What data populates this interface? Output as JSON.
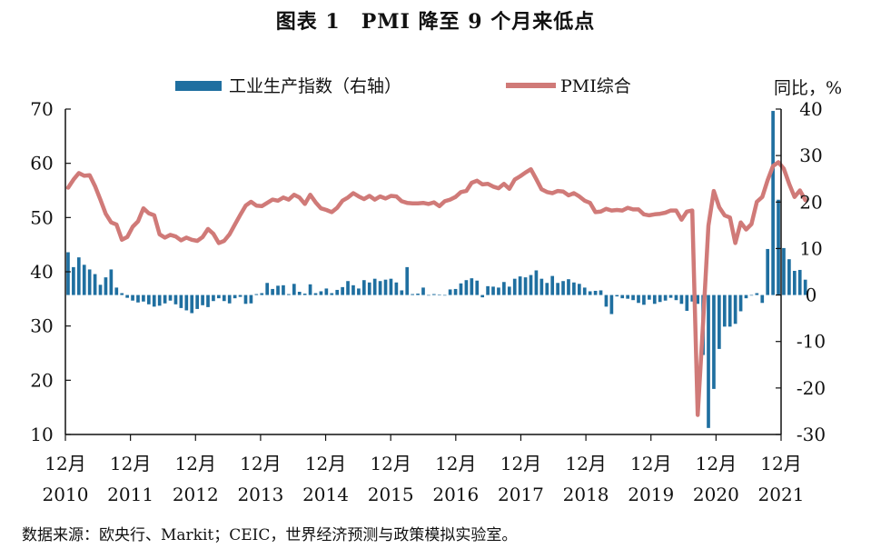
{
  "title": "图表 1　PMI 降至 9 个月来低点",
  "source": "数据来源：欧央行、Markit；CEIC，世界经济预测与政策模拟实验室。",
  "colors": {
    "bar": "#1f6fa0",
    "line": "#d07a78",
    "axis": "#111111"
  },
  "chart_data": {
    "type": "bar+line",
    "title": "图表 1　PMI 降至 9 个月来低点",
    "right_axis_unit": "同比，%",
    "left_axis": {
      "ylim": [
        10,
        70
      ],
      "ticks": [
        "70",
        "60",
        "50",
        "40",
        "30",
        "20",
        "10"
      ]
    },
    "right_axis": {
      "ylim": [
        -30,
        40
      ],
      "ticks": [
        "40",
        "30",
        "20",
        "10",
        "0",
        "-10",
        "-20",
        "-30"
      ]
    },
    "x_tick_labels": [
      {
        "month": "12月",
        "year": "2010"
      },
      {
        "month": "12月",
        "year": "2011"
      },
      {
        "month": "12月",
        "year": "2012"
      },
      {
        "month": "12月",
        "year": "2013"
      },
      {
        "month": "12月",
        "year": "2014"
      },
      {
        "month": "12月",
        "year": "2015"
      },
      {
        "month": "12月",
        "year": "2016"
      },
      {
        "month": "12月",
        "year": "2017"
      },
      {
        "month": "12月",
        "year": "2018"
      },
      {
        "month": "12月",
        "year": "2019"
      },
      {
        "month": "12月",
        "year": "2020"
      },
      {
        "month": "12月",
        "year": "2021"
      }
    ],
    "x_start": "2010-12",
    "grid": false,
    "legend_position": "top",
    "series": [
      {
        "name": "工业生产指数（右轴）",
        "type": "bar",
        "axis": "right",
        "values": [
          9.2,
          6.0,
          8.1,
          6.5,
          5.5,
          4.5,
          2.2,
          3.8,
          5.5,
          1.6,
          0.4,
          -0.6,
          -1.2,
          -1.6,
          -1.4,
          -2.0,
          -2.5,
          -2.3,
          -1.8,
          -1.2,
          -2.0,
          -2.8,
          -3.3,
          -3.9,
          -3.0,
          -2.2,
          -2.6,
          -1.3,
          -0.7,
          -1.3,
          -1.8,
          -0.7,
          -0.4,
          -1.9,
          -1.8,
          0.2,
          0.4,
          2.6,
          1.3,
          2.0,
          2.1,
          0.2,
          2.4,
          0.7,
          0.3,
          2.3,
          0.4,
          0.8,
          1.4,
          0.4,
          1.1,
          1.7,
          3.0,
          2.1,
          1.4,
          3.2,
          2.7,
          3.5,
          3.0,
          3.3,
          3.5,
          2.7,
          1.0,
          6.0,
          0.2,
          0.3,
          1.6,
          0.0,
          0.2,
          0.1,
          -0.1,
          1.2,
          1.3,
          2.5,
          3.2,
          3.6,
          3.1,
          -0.5,
          1.9,
          1.8,
          1.6,
          2.8,
          1.8,
          3.5,
          4.0,
          3.8,
          4.3,
          5.3,
          3.5,
          2.6,
          4.1,
          2.6,
          3.0,
          3.4,
          2.7,
          2.4,
          1.6,
          0.8,
          0.9,
          1.0,
          -2.5,
          -4.1,
          -0.3,
          -0.7,
          -0.8,
          -1.1,
          -1.7,
          -2.1,
          -1.0,
          -1.9,
          -1.5,
          -1.2,
          -0.6,
          -1.1,
          -1.9,
          -3.4,
          -1.4,
          -1.9,
          -12.9,
          -28.6,
          -20.2,
          -11.6,
          -6.8,
          -6.8,
          -6.2,
          -3.5,
          -0.7,
          0.0,
          0.4,
          -1.7,
          9.9,
          39.6,
          20.5,
          10.1,
          7.7,
          5.2,
          5.4,
          3.3
        ],
        "note": "monthly y/y %, read approximately from bar heights"
      },
      {
        "name": "PMI综合",
        "type": "line",
        "axis": "left",
        "values": [
          55.5,
          57.0,
          58.2,
          57.7,
          57.8,
          55.8,
          53.3,
          50.7,
          49.1,
          48.7,
          45.9,
          46.4,
          48.3,
          49.3,
          51.7,
          50.8,
          50.4,
          46.9,
          46.3,
          46.8,
          46.5,
          45.8,
          46.3,
          45.9,
          45.7,
          46.4,
          47.9,
          47.0,
          45.3,
          45.7,
          46.9,
          48.7,
          50.5,
          52.2,
          52.9,
          52.2,
          52.1,
          52.7,
          53.3,
          53.1,
          53.7,
          53.3,
          54.2,
          53.7,
          52.5,
          54.2,
          52.8,
          51.7,
          51.4,
          51.0,
          51.8,
          53.1,
          53.7,
          54.5,
          53.9,
          53.4,
          54.0,
          53.3,
          53.9,
          53.5,
          54.0,
          53.9,
          53.0,
          52.7,
          52.6,
          52.6,
          52.7,
          52.5,
          52.8,
          52.1,
          53.0,
          53.3,
          53.8,
          54.7,
          54.9,
          56.4,
          56.8,
          56.1,
          56.2,
          55.7,
          55.4,
          56.2,
          55.3,
          57.0,
          57.6,
          58.3,
          58.9,
          57.1,
          55.2,
          54.7,
          54.5,
          54.9,
          54.8,
          54.1,
          54.5,
          53.9,
          53.1,
          52.7,
          51.0,
          51.1,
          51.6,
          51.3,
          51.4,
          51.3,
          51.8,
          51.5,
          51.5,
          50.6,
          50.4,
          50.6,
          50.7,
          50.9,
          51.3,
          51.3,
          49.6,
          51.1,
          51.3,
          13.6,
          30.5,
          48.5,
          54.9,
          51.9,
          50.4,
          50.0,
          45.3,
          49.1,
          47.8,
          48.8,
          52.9,
          53.8,
          56.9,
          59.5,
          60.2,
          59.0,
          56.2,
          53.8,
          55.0,
          53.2
        ]
      }
    ]
  }
}
